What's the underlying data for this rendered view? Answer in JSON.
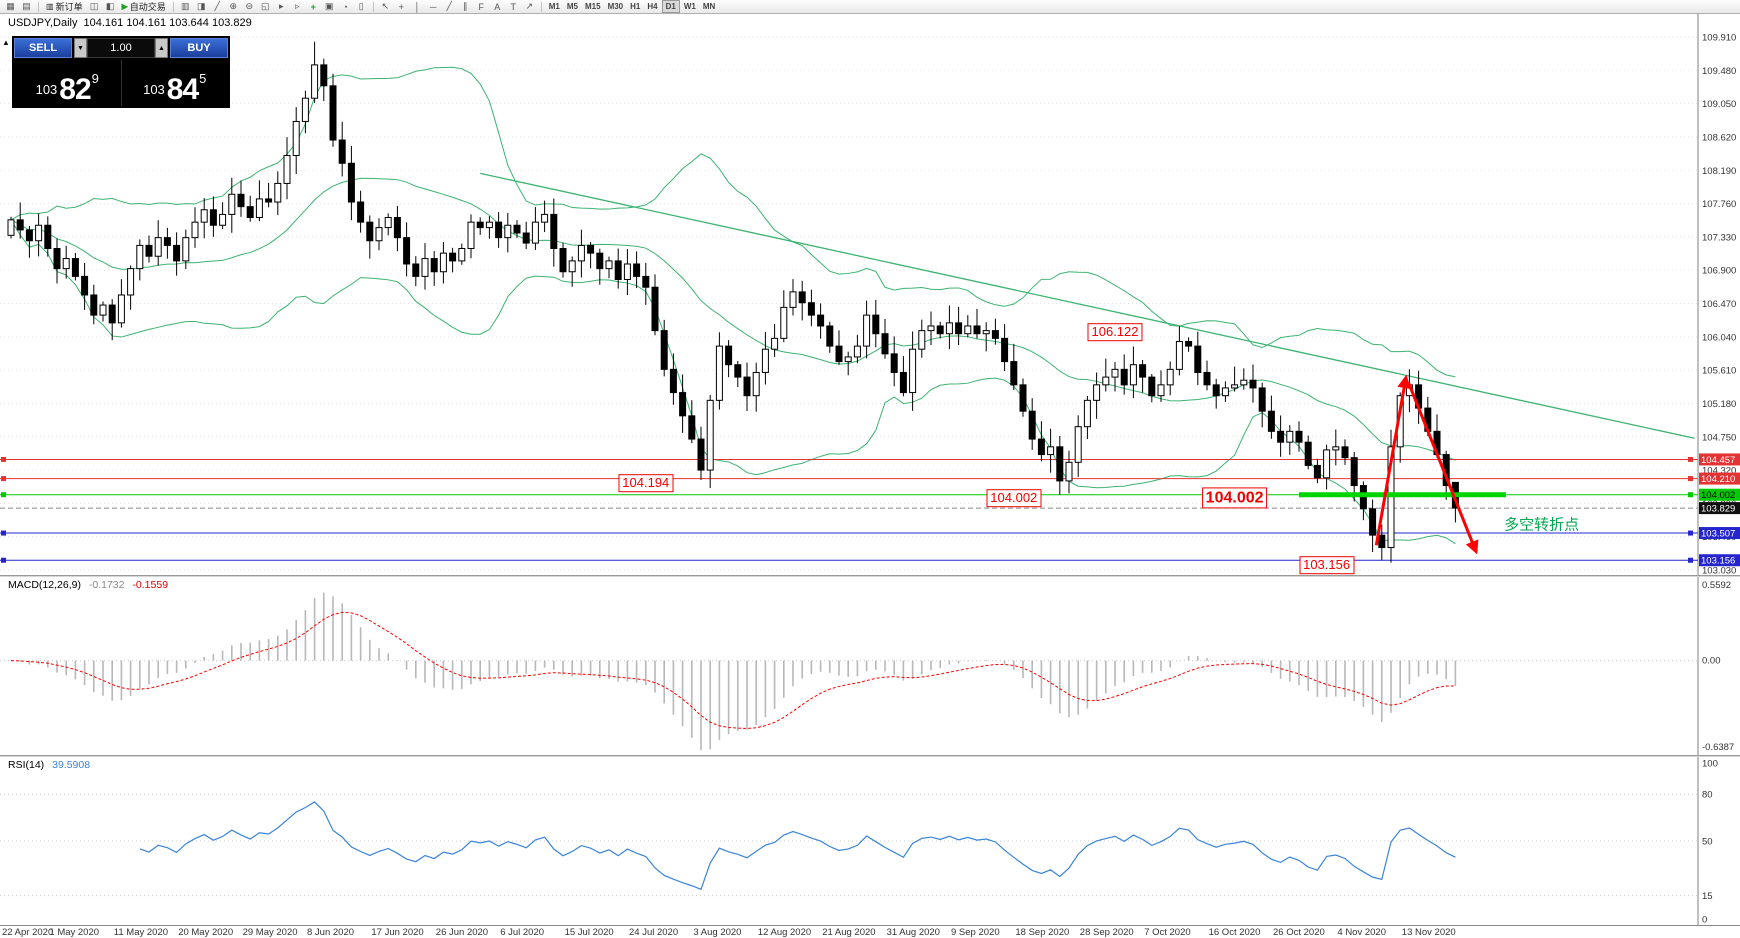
{
  "toolbar": {
    "groups": [
      {
        "items": [
          {
            "name": "new-chart-icon",
            "glyph": "▦"
          },
          {
            "name": "profiles-icon",
            "glyph": "▤"
          }
        ]
      },
      {
        "items": [
          {
            "name": "new-order-button",
            "glyph": "▥",
            "label": "新订单"
          },
          {
            "name": "chart-window-icon",
            "glyph": "◫"
          },
          {
            "name": "depth-of-market-icon",
            "glyph": "◧"
          },
          {
            "name": "auto-trading-button",
            "glyph": "▶",
            "glyph_color": "#1fa31f",
            "label": "自动交易"
          }
        ]
      },
      {
        "items": [
          {
            "name": "bar-chart-icon",
            "glyph": "▥"
          },
          {
            "name": "candlestick-chart-icon",
            "glyph": "◨"
          },
          {
            "name": "line-chart-icon",
            "glyph": "╱"
          },
          {
            "name": "zoom-in-icon",
            "glyph": "⊕"
          },
          {
            "name": "zoom-out-icon",
            "glyph": "⊖"
          },
          {
            "name": "tile-windows-icon",
            "glyph": "◱"
          },
          {
            "name": "auto-scroll-icon",
            "glyph": "▸"
          },
          {
            "name": "chart-shift-icon",
            "glyph": "▹"
          },
          {
            "name": "indicators-icon",
            "glyph": "+",
            "glyph_color": "#1fa31f"
          },
          {
            "name": "templates-icon",
            "glyph": "▣"
          },
          {
            "name": "alerts-icon",
            "glyph": "◔"
          },
          {
            "name": "mailbox-icon",
            "glyph": "▯"
          }
        ]
      },
      {
        "items": [
          {
            "name": "cursor-icon",
            "glyph": "↖"
          },
          {
            "name": "crosshair-icon",
            "glyph": "+"
          },
          {
            "name": "vertical-line-icon",
            "glyph": "│"
          },
          {
            "name": "horizontal-line-icon",
            "glyph": "─"
          },
          {
            "name": "trendline-icon",
            "glyph": "╱"
          },
          {
            "name": "channel-icon",
            "glyph": "∥"
          },
          {
            "name": "fibonacci-icon",
            "glyph": "F"
          },
          {
            "name": "text-icon",
            "glyph": "A"
          },
          {
            "name": "label-icon",
            "glyph": "T"
          },
          {
            "name": "arrow-tool-icon",
            "glyph": "↗"
          }
        ]
      },
      {
        "items": [
          {
            "name": "tf-m1",
            "label": "M1"
          },
          {
            "name": "tf-m5",
            "label": "M5"
          },
          {
            "name": "tf-m15",
            "label": "M15"
          },
          {
            "name": "tf-m30",
            "label": "M30"
          },
          {
            "name": "tf-h1",
            "label": "H1"
          },
          {
            "name": "tf-h4",
            "label": "H4"
          },
          {
            "name": "tf-d1",
            "label": "D1",
            "active": true
          },
          {
            "name": "tf-w1",
            "label": "W1"
          },
          {
            "name": "tf-mn",
            "label": "MN"
          }
        ]
      }
    ]
  },
  "chart": {
    "title": "USDJPY,Daily",
    "ohlc_text": "104.161 104.161 103.644 103.829",
    "trade_panel": {
      "collapse_glyph": "▲",
      "sell_label": "SELL",
      "buy_label": "BUY",
      "volume": "1.00",
      "vol_down_glyph": "▼",
      "vol_up_glyph": "▲",
      "sell": {
        "prefix": "103",
        "big": "82",
        "sup": "9"
      },
      "buy": {
        "prefix": "103",
        "big": "84",
        "sup": "5"
      }
    },
    "price_scale": [
      "109.910",
      "109.480",
      "109.050",
      "108.620",
      "108.190",
      "107.760",
      "107.330",
      "106.900",
      "106.470",
      "106.040",
      "105.610",
      "105.180",
      "104.750",
      "104.320",
      "103.890",
      "103.460",
      "103.030"
    ],
    "levels": [
      {
        "price": 104.457,
        "label": "104.457",
        "color": "#e43333",
        "text": "#ffffff"
      },
      {
        "price": 104.21,
        "label": "104.210",
        "color": "#e43333",
        "text": "#ffffff"
      },
      {
        "price": 104.002,
        "label": "104.002",
        "color": "#00ca00",
        "text": "#000000"
      },
      {
        "price": 103.507,
        "label": "103.507",
        "color": "#2525cd",
        "text": "#ffffff"
      },
      {
        "price": 103.156,
        "label": "103.156",
        "color": "#2525cd",
        "text": "#ffffff"
      }
    ],
    "current_price": {
      "price": 103.829,
      "label": "103.829",
      "bg": "#101010",
      "text": "#ffffff"
    }
  },
  "chart_data": {
    "type": "candlestick",
    "symbol": "USDJPY",
    "timeframe": "Daily",
    "y_axis": {
      "max": 109.91,
      "min": 103.03,
      "step": 0.43
    },
    "label_every": 7,
    "x_labels": [
      "22 Apr 2020",
      "1 May 2020",
      "11 May 2020",
      "20 May 2020",
      "29 May 2020",
      "8 Jun 2020",
      "17 Jun 2020",
      "26 Jun 2020",
      "6 Jul 2020",
      "15 Jul 2020",
      "24 Jul 2020",
      "3 Aug 2020",
      "12 Aug 2020",
      "21 Aug 2020",
      "31 Aug 2020",
      "9 Sep 2020",
      "18 Sep 2020",
      "28 Sep 2020",
      "7 Oct 2020",
      "16 Oct 2020",
      "26 Oct 2020",
      "4 Nov 2020",
      "13 Nov 2020"
    ],
    "first_open": 107.35,
    "closes": [
      107.55,
      107.42,
      107.28,
      107.48,
      107.18,
      106.92,
      107.05,
      106.82,
      106.58,
      106.32,
      106.45,
      106.22,
      106.58,
      106.92,
      107.22,
      107.08,
      107.32,
      107.22,
      107.02,
      107.32,
      107.52,
      107.68,
      107.48,
      107.62,
      107.88,
      107.72,
      107.58,
      107.82,
      107.78,
      108.02,
      108.38,
      108.82,
      109.12,
      109.55,
      109.28,
      108.58,
      108.28,
      107.78,
      107.52,
      107.28,
      107.45,
      107.58,
      107.32,
      106.98,
      106.82,
      107.05,
      106.88,
      107.12,
      107.02,
      107.18,
      107.52,
      107.45,
      107.52,
      107.32,
      107.48,
      107.38,
      107.25,
      107.52,
      107.62,
      107.18,
      106.88,
      107.02,
      107.22,
      107.12,
      106.92,
      107.02,
      106.78,
      106.98,
      106.82,
      106.68,
      106.12,
      105.62,
      105.32,
      105.02,
      104.72,
      104.32,
      105.22,
      105.92,
      105.68,
      105.52,
      105.28,
      105.58,
      105.88,
      106.02,
      106.42,
      106.62,
      106.48,
      106.32,
      106.18,
      105.92,
      105.72,
      105.78,
      105.92,
      106.32,
      106.08,
      105.82,
      105.58,
      105.32,
      105.88,
      106.12,
      106.18,
      106.08,
      106.22,
      106.08,
      106.18,
      106.08,
      106.12,
      106.02,
      105.72,
      105.42,
      105.08,
      104.72,
      104.52,
      104.62,
      104.18,
      104.42,
      104.88,
      105.22,
      105.42,
      105.52,
      105.62,
      105.42,
      105.68,
      105.52,
      105.28,
      105.42,
      105.62,
      105.98,
      105.92,
      105.58,
      105.42,
      105.28,
      105.38,
      105.42,
      105.48,
      105.38,
      105.08,
      104.82,
      104.68,
      104.82,
      104.68,
      104.38,
      104.22,
      104.58,
      104.62,
      104.48,
      104.12,
      103.82,
      103.48,
      103.32,
      104.62,
      105.28,
      105.42,
      105.12,
      104.82,
      104.52,
      104.12,
      103.829
    ],
    "overrides": [
      {
        "i": 0,
        "v": {
          "o": 107.35
        }
      },
      {
        "i": 33,
        "v": {
          "h": 109.85
        }
      },
      {
        "i": 75,
        "v": {
          "l": 104.194
        }
      },
      {
        "i": 114,
        "v": {
          "l": 104.002
        }
      },
      {
        "i": 149,
        "v": {
          "l": 103.156
        }
      },
      {
        "i": 152,
        "v": {
          "h": 105.62
        }
      },
      {
        "i": 157,
        "v": {
          "o": 104.161,
          "h": 104.161,
          "l": 103.644,
          "c": 103.829
        }
      }
    ],
    "bollinger": {
      "period": 20,
      "deviation": 2,
      "color": "#3cb371"
    },
    "trendline": {
      "i1": 51,
      "p1": 108.15,
      "i2": 183,
      "p2": 104.73,
      "color": "#3cb371"
    },
    "green_segment": {
      "i1": 140,
      "i2": 162.5,
      "p": 104.002,
      "color": "#00d400",
      "width": 5
    },
    "turn_text": {
      "text": "多空转折点",
      "i": 162.3,
      "p": 103.62,
      "color": "#00a650",
      "fs": 15
    },
    "annotations": [
      {
        "text": "104.194",
        "i": 69,
        "p": 104.15,
        "fs": 13
      },
      {
        "text": "104.002",
        "i": 109,
        "p": 103.96,
        "fs": 13
      },
      {
        "text": "106.122",
        "i": 120,
        "p": 106.1,
        "fs": 13
      },
      {
        "text": "104.002",
        "i": 133,
        "p": 103.96,
        "fs": 16,
        "bold": true
      },
      {
        "text": "103.156",
        "i": 143,
        "p": 103.09,
        "fs": 13
      }
    ],
    "arrows": [
      {
        "name": "red-arrow-up",
        "x1i": 148.4,
        "p1": 103.35,
        "x2i": 151.6,
        "p2": 105.5,
        "color": "#ff0000",
        "w": 3
      },
      {
        "name": "red-arrow-down",
        "x1i": 151.9,
        "p1": 105.45,
        "x2i": 159.2,
        "p2": 103.28,
        "color": "#ff0000",
        "w": 3
      }
    ],
    "macd": {
      "label": "MACD(12,26,9)",
      "value_main": "-0.1732",
      "value_signal": "-0.1559",
      "scale_top": "0.5592",
      "scale_zero": "0.00",
      "scale_bottom": "-0.6387",
      "top_value": 0.5592,
      "bottom_value": -0.6387,
      "fast": 12,
      "slow": 26,
      "signal": 9,
      "hist_color": "#b8b8b8",
      "signal_color": "#ff0000"
    },
    "rsi": {
      "label": "RSI(14)",
      "value": "39.5908",
      "period": 14,
      "levels": [
        80,
        50,
        15
      ],
      "scale_labels": [
        "100",
        "80",
        "50",
        "15",
        "0"
      ],
      "line_color": "#3a84d9"
    }
  }
}
